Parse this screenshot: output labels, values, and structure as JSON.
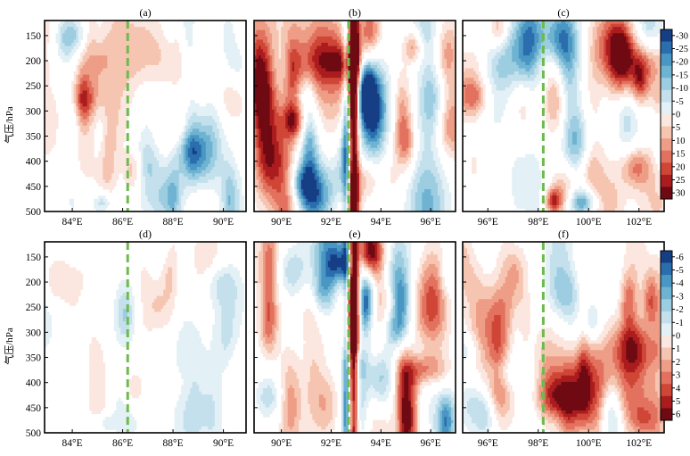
{
  "figure": {
    "y_label": "气压/hPa",
    "pressure_ticks": [
      "150",
      "200",
      "250",
      "300",
      "350",
      "400",
      "450",
      "500"
    ]
  },
  "colors": {
    "negative_ramp": [
      "#e3f0f6",
      "#c3e0ec",
      "#9ccde0",
      "#6fb3d2",
      "#4a97c3",
      "#2a6eae",
      "#163e85"
    ],
    "positive_ramp": [
      "#fbe7df",
      "#f6c5b1",
      "#ee9d86",
      "#e2725f",
      "#cf4637",
      "#ab1c1f",
      "#6f0a13"
    ],
    "zero_band": "#ffffff",
    "divider": "#6cbb4c",
    "frame": "#000000"
  },
  "chart_data": [
    {
      "id": "a",
      "panel_label": "(a)",
      "type": "heatmap",
      "row": 0,
      "col": 0,
      "x_ticks": [
        "84°E",
        "86°E",
        "88°E",
        "90°E"
      ],
      "x_tick_values": [
        84,
        86,
        88,
        90
      ],
      "xlim": [
        82.9,
        90.9
      ],
      "ylim": [
        120,
        500
      ],
      "y_reversed": true,
      "divider_lon": 86.2,
      "amp_scale": 0.55,
      "seed": 3
    },
    {
      "id": "b",
      "panel_label": "(b)",
      "type": "heatmap",
      "row": 0,
      "col": 1,
      "x_ticks": [
        "90°E",
        "92°E",
        "94°E",
        "96°E"
      ],
      "x_tick_values": [
        90,
        92,
        94,
        96
      ],
      "xlim": [
        88.9,
        97
      ],
      "ylim": [
        120,
        500
      ],
      "y_reversed": true,
      "divider_lon": 92.7,
      "amp_scale": 1.0,
      "seed": 7
    },
    {
      "id": "c",
      "panel_label": "(c)",
      "type": "heatmap",
      "row": 0,
      "col": 2,
      "x_ticks": [
        "96°E",
        "98°E",
        "100°E",
        "102°E"
      ],
      "x_tick_values": [
        96,
        98,
        100,
        102
      ],
      "xlim": [
        95,
        103
      ],
      "ylim": [
        120,
        500
      ],
      "y_reversed": true,
      "divider_lon": 98.2,
      "amp_scale": 0.8,
      "seed": 11
    },
    {
      "id": "d",
      "panel_label": "(d)",
      "type": "heatmap",
      "row": 1,
      "col": 0,
      "x_ticks": [
        "84°E",
        "86°E",
        "88°E",
        "90°E"
      ],
      "x_tick_values": [
        84,
        86,
        88,
        90
      ],
      "xlim": [
        82.9,
        90.9
      ],
      "ylim": [
        120,
        500
      ],
      "y_reversed": true,
      "divider_lon": 86.2,
      "amp_scale": 0.45,
      "seed": 17
    },
    {
      "id": "e",
      "panel_label": "(e)",
      "type": "heatmap",
      "row": 1,
      "col": 1,
      "x_ticks": [
        "90°E",
        "92°E",
        "94°E",
        "96°E"
      ],
      "x_tick_values": [
        90,
        92,
        94,
        96
      ],
      "xlim": [
        88.9,
        97
      ],
      "ylim": [
        120,
        500
      ],
      "y_reversed": true,
      "divider_lon": 92.7,
      "amp_scale": 1.0,
      "seed": 23
    },
    {
      "id": "f",
      "panel_label": "(f)",
      "type": "heatmap",
      "row": 1,
      "col": 2,
      "x_ticks": [
        "96°E",
        "98°E",
        "100°E",
        "102°E"
      ],
      "x_tick_values": [
        96,
        98,
        100,
        102
      ],
      "xlim": [
        95,
        103
      ],
      "ylim": [
        120,
        500
      ],
      "y_reversed": true,
      "divider_lon": 98.2,
      "amp_scale": 0.6,
      "seed": 29
    }
  ],
  "colorbars": [
    {
      "id": "top",
      "labels": [
        "-30",
        "-25",
        "-20",
        "-15",
        "-10",
        "-5",
        "0",
        "5",
        "10",
        "15",
        "20",
        "25",
        "30"
      ],
      "levels": [
        -30,
        -25,
        -20,
        -15,
        -10,
        -5,
        0,
        5,
        10,
        15,
        20,
        25,
        30
      ]
    },
    {
      "id": "bottom",
      "labels": [
        "-6",
        "-5",
        "-4",
        "-3",
        "-2",
        "-1",
        "0",
        "1",
        "2",
        "3",
        "4",
        "5",
        "6"
      ],
      "levels": [
        -6,
        -5,
        -4,
        -3,
        -2,
        -1,
        0,
        1,
        2,
        3,
        4,
        5,
        6
      ]
    }
  ]
}
